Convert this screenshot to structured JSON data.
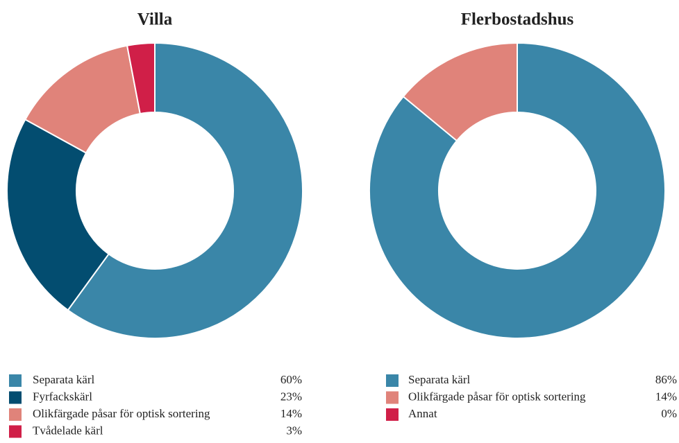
{
  "chart_data": [
    {
      "type": "donut",
      "title": "Villa",
      "categories": [
        "Separata kärl",
        "Fyrfackskärl",
        "Olikfärgade påsar för optisk sortering",
        "Tvådelade kärl"
      ],
      "values": [
        60,
        23,
        14,
        3
      ],
      "value_labels": [
        "60%",
        "23%",
        "14%",
        "3%"
      ],
      "colors": [
        "#3a86a8",
        "#034d70",
        "#e0837a",
        "#d01f48"
      ]
    },
    {
      "type": "donut",
      "title": "Flerbostadshus",
      "categories": [
        "Separata kärl",
        "Olikfärgade påsar för optisk sortering",
        "Annat"
      ],
      "values": [
        86,
        14,
        0
      ],
      "value_labels": [
        "86%",
        "14%",
        "0%"
      ],
      "colors": [
        "#3a86a8",
        "#e0837a",
        "#d01f48"
      ]
    }
  ]
}
